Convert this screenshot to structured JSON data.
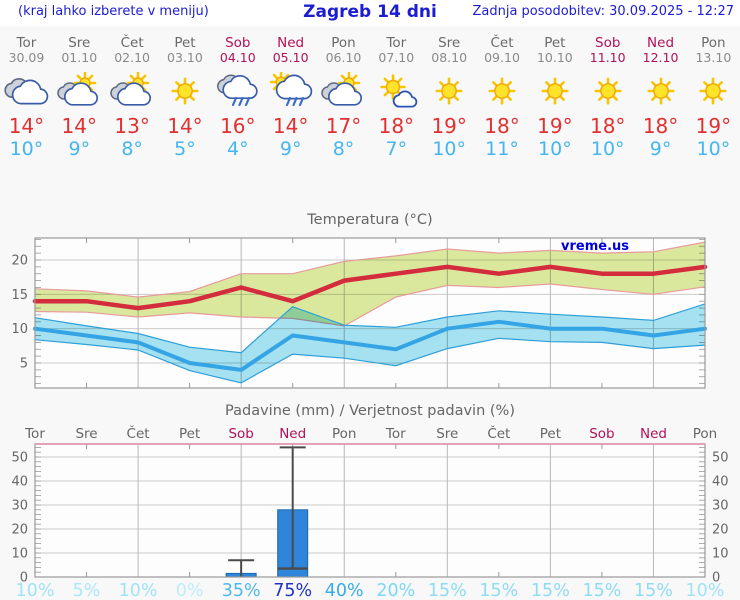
{
  "header": {
    "left_note": "(kraj lahko izberete v meniju)",
    "title": "Zagreb 14 dni",
    "updated": "Zadnja posodobitev: 30.09.2025 - 12:27"
  },
  "units": {
    "degree": "°"
  },
  "colors": {
    "header_blue": "#1c1cd0",
    "weekend_crimson": "#b0125a",
    "day_gray": "#6a6a6a",
    "tmax_red": "#e03030",
    "tmin_blue": "#45b6f0",
    "axis_gray": "#999999",
    "label_gray": "#666666",
    "watermark_blue": "#0000dd",
    "bar_blue": "#2e85da"
  },
  "days": [
    {
      "name": "Tor",
      "date": "30.09",
      "weekend": false,
      "icon": "cloudy",
      "tmax": 14,
      "tmin": 10,
      "prob": "10%",
      "prob_color": "#9fe3f5"
    },
    {
      "name": "Sre",
      "date": "01.10",
      "weekend": false,
      "icon": "partly-cloudy",
      "tmax": 14,
      "tmin": 9,
      "prob": "5%",
      "prob_color": "#abe7f7"
    },
    {
      "name": "Čet",
      "date": "02.10",
      "weekend": false,
      "icon": "partly-cloudy",
      "tmax": 13,
      "tmin": 8,
      "prob": "10%",
      "prob_color": "#9fe3f5"
    },
    {
      "name": "Pet",
      "date": "03.10",
      "weekend": false,
      "icon": "sunny",
      "tmax": 14,
      "tmin": 5,
      "prob": "0%",
      "prob_color": "#bceef9"
    },
    {
      "name": "Sob",
      "date": "04.10",
      "weekend": true,
      "icon": "rain",
      "tmax": 16,
      "tmin": 4,
      "prob": "35%",
      "prob_color": "#4db9ee"
    },
    {
      "name": "Ned",
      "date": "05.10",
      "weekend": true,
      "icon": "rain-shower-sun",
      "tmax": 14,
      "tmin": 9,
      "prob": "75%",
      "prob_color": "#2033c2"
    },
    {
      "name": "Pon",
      "date": "06.10",
      "weekend": false,
      "icon": "partly-cloudy",
      "tmax": 17,
      "tmin": 8,
      "prob": "40%",
      "prob_color": "#3aabea"
    },
    {
      "name": "Tor",
      "date": "07.10",
      "weekend": false,
      "icon": "mostly-sunny",
      "tmax": 18,
      "tmin": 7,
      "prob": "20%",
      "prob_color": "#7ed7f2"
    },
    {
      "name": "Sre",
      "date": "08.10",
      "weekend": false,
      "icon": "sunny",
      "tmax": 19,
      "tmin": 10,
      "prob": "15%",
      "prob_color": "#8edcf3"
    },
    {
      "name": "Čet",
      "date": "09.10",
      "weekend": false,
      "icon": "sunny",
      "tmax": 18,
      "tmin": 11,
      "prob": "15%",
      "prob_color": "#8edcf3"
    },
    {
      "name": "Pet",
      "date": "10.10",
      "weekend": false,
      "icon": "sunny",
      "tmax": 19,
      "tmin": 10,
      "prob": "15%",
      "prob_color": "#8edcf3"
    },
    {
      "name": "Sob",
      "date": "11.10",
      "weekend": true,
      "icon": "sunny",
      "tmax": 18,
      "tmin": 10,
      "prob": "15%",
      "prob_color": "#8edcf3"
    },
    {
      "name": "Ned",
      "date": "12.10",
      "weekend": true,
      "icon": "sunny",
      "tmax": 18,
      "tmin": 9,
      "prob": "15%",
      "prob_color": "#8edcf3"
    },
    {
      "name": "Pon",
      "date": "13.10",
      "weekend": false,
      "icon": "sunny",
      "tmax": 19,
      "tmin": 10,
      "prob": "10%",
      "prob_color": "#9fe3f5"
    }
  ],
  "chart_data": [
    {
      "type": "line",
      "title": "Temperatura (°C)",
      "watermark": "vreme.us",
      "categories": [
        "Tor 30.09",
        "Sre 01.10",
        "Čet 02.10",
        "Pet 03.10",
        "Sob 04.10",
        "Ned 05.10",
        "Pon 06.10",
        "Tor 07.10",
        "Sre 08.10",
        "Čet 09.10",
        "Pet 10.10",
        "Sob 11.10",
        "Ned 12.10",
        "Pon 13.10"
      ],
      "ylim": [
        1.4,
        23.2
      ],
      "yticks": [
        5,
        10,
        15,
        20
      ],
      "grid_day_indices": [
        2,
        4,
        6,
        8,
        10,
        12
      ],
      "legend_position": "none",
      "series": [
        {
          "name": "max-temp",
          "color": "#d32c3c",
          "band_color": "#dcea9f",
          "band_border": "#e89b9b",
          "values": [
            14,
            14,
            13,
            14,
            16,
            14,
            17,
            18,
            19,
            18,
            19,
            18,
            18,
            19
          ],
          "hi": [
            15.8,
            15.5,
            14.6,
            15.4,
            18.0,
            18.0,
            19.8,
            20.6,
            21.6,
            21.0,
            21.4,
            21.0,
            21.2,
            22.6
          ],
          "lo": [
            12.5,
            12.4,
            11.7,
            12.3,
            11.7,
            11.5,
            10.4,
            14.6,
            16.3,
            16.0,
            16.5,
            15.7,
            15.0,
            16.1
          ]
        },
        {
          "name": "min-temp",
          "color": "#35a4e5",
          "band_color": "#a6e3f2",
          "band_border": "#2f9fd8",
          "values": [
            10,
            9,
            8,
            5,
            4,
            9,
            8,
            7,
            10,
            11,
            10,
            10,
            9,
            10
          ],
          "hi": [
            11.6,
            10.4,
            9.3,
            7.3,
            6.5,
            13.2,
            10.5,
            10.2,
            11.7,
            12.6,
            12.1,
            11.7,
            11.2,
            13.6
          ],
          "lo": [
            8.4,
            7.7,
            6.9,
            3.9,
            2.1,
            6.3,
            5.7,
            4.6,
            7.1,
            8.6,
            8.1,
            8.0,
            7.1,
            7.6
          ]
        }
      ]
    },
    {
      "type": "bar",
      "title": "Padavine (mm) / Verjetnost padavin (%)",
      "categories": [
        "Tor",
        "Sre",
        "Čet",
        "Pet",
        "Sob",
        "Ned",
        "Pon",
        "Tor",
        "Sre",
        "Čet",
        "Pet",
        "Sob",
        "Ned",
        "Pon"
      ],
      "ylim": [
        0,
        55
      ],
      "yticks": [
        0,
        10,
        20,
        30,
        40,
        50
      ],
      "grid_day_indices": [
        2,
        4,
        6,
        8,
        10,
        12
      ],
      "bar_color": "#2e85da",
      "bars": [
        {
          "day_index": 4,
          "day": "Sob 04.10",
          "value": 1.5,
          "whisker_lo": 0,
          "whisker_hi": 7
        },
        {
          "day_index": 5,
          "day": "Ned 05.10",
          "value": 28,
          "whisker_lo": 3.5,
          "whisker_hi": 54,
          "median": 3.5
        }
      ],
      "probabilities": [
        "10%",
        "5%",
        "10%",
        "0%",
        "35%",
        "75%",
        "40%",
        "20%",
        "15%",
        "15%",
        "15%",
        "15%",
        "15%",
        "10%"
      ]
    }
  ]
}
